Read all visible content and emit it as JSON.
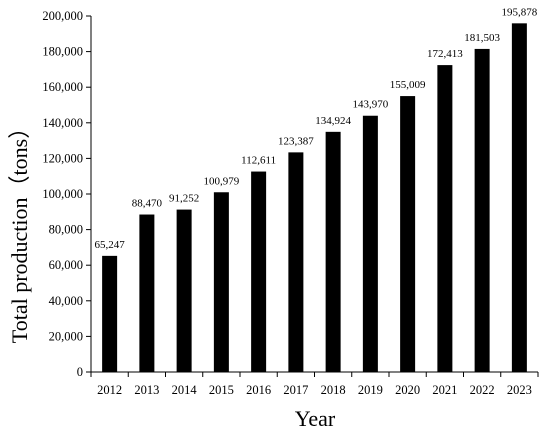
{
  "chart_data": {
    "type": "bar",
    "categories": [
      "2012",
      "2013",
      "2014",
      "2015",
      "2016",
      "2017",
      "2018",
      "2019",
      "2020",
      "2021",
      "2022",
      "2023"
    ],
    "values": [
      65247,
      88470,
      91252,
      100979,
      112611,
      123387,
      134924,
      143970,
      155009,
      172413,
      181503,
      195878
    ],
    "data_labels": [
      "65,247",
      "88,470",
      "91,252",
      "100,979",
      "112,611",
      "123,387",
      "134,924",
      "143,970",
      "155,009",
      "172,413",
      "181,503",
      "195,878"
    ],
    "xlabel": "Year",
    "ylabel": "Total production（tons）",
    "ylim": [
      0,
      200000
    ],
    "yticks": [
      0,
      20000,
      40000,
      60000,
      80000,
      100000,
      120000,
      140000,
      160000,
      180000,
      200000
    ],
    "ytick_labels": [
      "0",
      "20,000",
      "40,000",
      "60,000",
      "80,000",
      "100,000",
      "120,000",
      "140,000",
      "160,000",
      "180,000",
      "200,000"
    ],
    "bar_color": "#000000",
    "grid": false,
    "legend": "none"
  }
}
